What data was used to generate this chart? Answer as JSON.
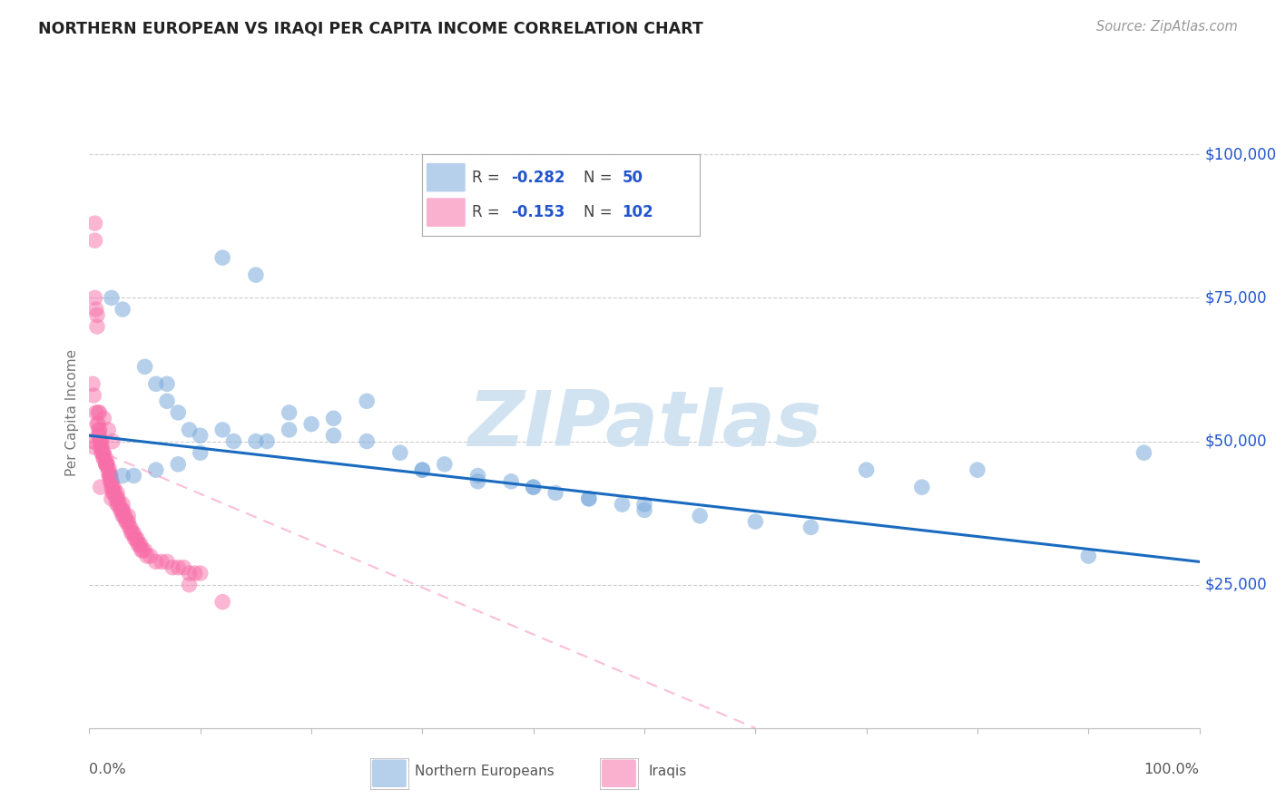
{
  "title": "NORTHERN EUROPEAN VS IRAQI PER CAPITA INCOME CORRELATION CHART",
  "source": "Source: ZipAtlas.com",
  "ylabel": "Per Capita Income",
  "xlim": [
    0.0,
    1.0
  ],
  "ylim": [
    0,
    110000
  ],
  "blue_color": "#7aabdc",
  "pink_color": "#f76fa8",
  "blue_line_color": "#1a6bbf",
  "pink_line_color": "#f76fa8",
  "right_label_color": "#2255cc",
  "watermark_color": "#cce0f0",
  "yticks": [
    25000,
    50000,
    75000,
    100000
  ],
  "ytick_labels": [
    "$25,000",
    "$50,000",
    "$75,000",
    "$100,000"
  ],
  "blue_line_x": [
    0.0,
    1.0
  ],
  "blue_line_y": [
    51000,
    29000
  ],
  "pink_line_x": [
    0.0,
    0.6
  ],
  "pink_line_y": [
    49000,
    0
  ],
  "blue_scatter_x": [
    0.02,
    0.03,
    0.05,
    0.06,
    0.07,
    0.08,
    0.09,
    0.1,
    0.12,
    0.13,
    0.15,
    0.16,
    0.18,
    0.2,
    0.22,
    0.25,
    0.25,
    0.28,
    0.3,
    0.32,
    0.35,
    0.38,
    0.4,
    0.42,
    0.45,
    0.48,
    0.5,
    0.55,
    0.6,
    0.65,
    0.7,
    0.75,
    0.8,
    0.9,
    0.95,
    0.04,
    0.06,
    0.08,
    0.1,
    0.12,
    0.15,
    0.18,
    0.22,
    0.3,
    0.35,
    0.4,
    0.45,
    0.5,
    0.03,
    0.07
  ],
  "blue_scatter_y": [
    75000,
    73000,
    63000,
    60000,
    57000,
    55000,
    52000,
    51000,
    82000,
    50000,
    79000,
    50000,
    55000,
    53000,
    54000,
    57000,
    50000,
    48000,
    45000,
    46000,
    44000,
    43000,
    42000,
    41000,
    40000,
    39000,
    38000,
    37000,
    36000,
    35000,
    45000,
    42000,
    45000,
    30000,
    48000,
    44000,
    45000,
    46000,
    48000,
    52000,
    50000,
    52000,
    51000,
    45000,
    43000,
    42000,
    40000,
    39000,
    44000,
    60000
  ],
  "pink_scatter_x": [
    0.005,
    0.005,
    0.005,
    0.006,
    0.007,
    0.007,
    0.008,
    0.008,
    0.009,
    0.009,
    0.01,
    0.01,
    0.011,
    0.011,
    0.012,
    0.013,
    0.013,
    0.015,
    0.015,
    0.015,
    0.016,
    0.017,
    0.018,
    0.018,
    0.019,
    0.019,
    0.02,
    0.02,
    0.021,
    0.021,
    0.022,
    0.023,
    0.024,
    0.025,
    0.025,
    0.026,
    0.027,
    0.028,
    0.029,
    0.03,
    0.03,
    0.031,
    0.032,
    0.033,
    0.034,
    0.035,
    0.036,
    0.037,
    0.038,
    0.039,
    0.04,
    0.041,
    0.042,
    0.043,
    0.044,
    0.045,
    0.046,
    0.047,
    0.048,
    0.05,
    0.052,
    0.055,
    0.06,
    0.065,
    0.07,
    0.075,
    0.08,
    0.085,
    0.09,
    0.095,
    0.1,
    0.003,
    0.004,
    0.003,
    0.004,
    0.006,
    0.007,
    0.008,
    0.01,
    0.012,
    0.015,
    0.018,
    0.02,
    0.025,
    0.03,
    0.035,
    0.009,
    0.011,
    0.013,
    0.016,
    0.019,
    0.022,
    0.026,
    0.03,
    0.013,
    0.017,
    0.021,
    0.009,
    0.09,
    0.12,
    0.01,
    0.02
  ],
  "pink_scatter_y": [
    88000,
    85000,
    75000,
    73000,
    72000,
    70000,
    55000,
    53000,
    52000,
    51000,
    50000,
    49000,
    49000,
    48000,
    48000,
    47000,
    47000,
    47000,
    46000,
    46000,
    46000,
    45000,
    45000,
    44000,
    44000,
    43000,
    43000,
    42000,
    42000,
    41000,
    41000,
    41000,
    40000,
    40000,
    39000,
    39000,
    39000,
    38000,
    38000,
    38000,
    37000,
    37000,
    37000,
    36000,
    36000,
    36000,
    35000,
    35000,
    34000,
    34000,
    34000,
    33000,
    33000,
    33000,
    32000,
    32000,
    32000,
    31000,
    31000,
    31000,
    30000,
    30000,
    29000,
    29000,
    29000,
    28000,
    28000,
    28000,
    27000,
    27000,
    27000,
    50000,
    49000,
    60000,
    58000,
    55000,
    53000,
    51000,
    50000,
    48000,
    46000,
    44000,
    43000,
    41000,
    39000,
    37000,
    52000,
    50000,
    48000,
    46000,
    44000,
    42000,
    40000,
    38000,
    54000,
    52000,
    50000,
    55000,
    25000,
    22000,
    42000,
    40000
  ]
}
